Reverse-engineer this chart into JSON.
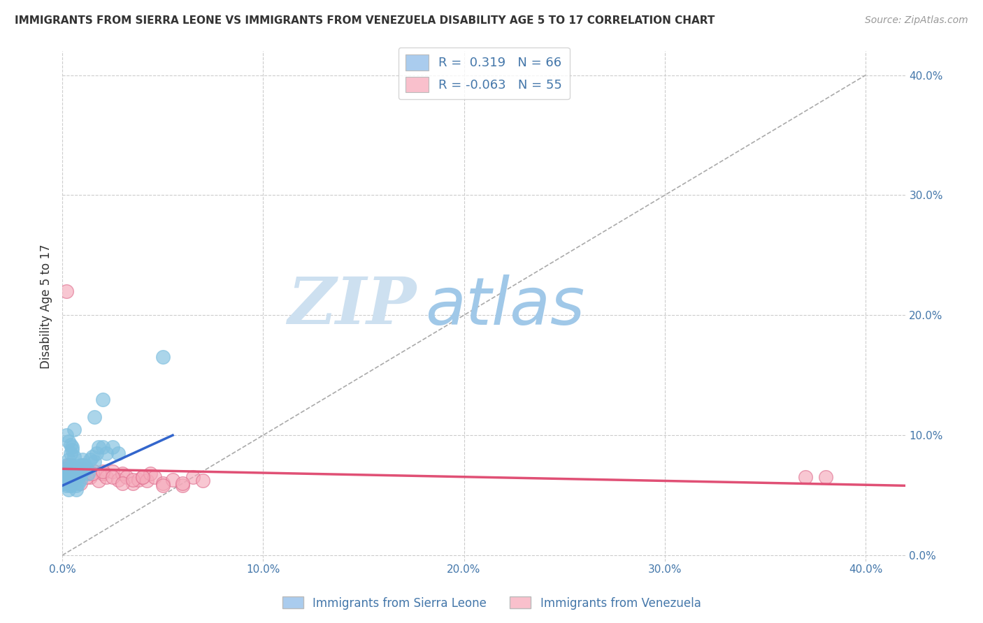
{
  "title": "IMMIGRANTS FROM SIERRA LEONE VS IMMIGRANTS FROM VENEZUELA DISABILITY AGE 5 TO 17 CORRELATION CHART",
  "source": "Source: ZipAtlas.com",
  "ylabel": "Disability Age 5 to 17",
  "legend_label1": "Immigrants from Sierra Leone",
  "legend_label2": "Immigrants from Venezuela",
  "R1": 0.319,
  "N1": 66,
  "R2": -0.063,
  "N2": 55,
  "color_blue": "#7fbfdf",
  "color_blue_edge": "#7fbfdf",
  "color_blue_line": "#3366cc",
  "color_pink": "#f5aabb",
  "color_pink_edge": "#e07090",
  "color_pink_line": "#e05075",
  "color_legend_blue_box": "#aaccee",
  "color_legend_pink_box": "#f9c0cc",
  "xlim": [
    0.0,
    0.42
  ],
  "ylim": [
    -0.005,
    0.42
  ],
  "xticks": [
    0.0,
    0.1,
    0.2,
    0.3,
    0.4
  ],
  "yticks_right": [
    0.0,
    0.1,
    0.2,
    0.3,
    0.4
  ],
  "grid_color": "#cccccc",
  "background_color": "#ffffff",
  "blue_x": [
    0.001,
    0.001,
    0.001,
    0.001,
    0.002,
    0.002,
    0.002,
    0.002,
    0.003,
    0.003,
    0.003,
    0.003,
    0.004,
    0.004,
    0.004,
    0.004,
    0.005,
    0.005,
    0.005,
    0.005,
    0.006,
    0.006,
    0.006,
    0.007,
    0.007,
    0.007,
    0.008,
    0.008,
    0.009,
    0.009,
    0.01,
    0.01,
    0.011,
    0.012,
    0.013,
    0.014,
    0.015,
    0.016,
    0.017,
    0.018,
    0.02,
    0.022,
    0.025,
    0.028,
    0.001,
    0.002,
    0.003,
    0.004,
    0.005,
    0.006,
    0.007,
    0.008,
    0.009,
    0.01,
    0.002,
    0.003,
    0.004,
    0.005,
    0.006,
    0.003,
    0.004,
    0.005,
    0.006,
    0.016,
    0.05,
    0.02
  ],
  "blue_y": [
    0.065,
    0.068,
    0.072,
    0.06,
    0.075,
    0.07,
    0.065,
    0.062,
    0.068,
    0.065,
    0.07,
    0.055,
    0.068,
    0.072,
    0.063,
    0.058,
    0.07,
    0.068,
    0.075,
    0.062,
    0.065,
    0.072,
    0.06,
    0.07,
    0.065,
    0.058,
    0.072,
    0.065,
    0.068,
    0.075,
    0.08,
    0.07,
    0.075,
    0.072,
    0.068,
    0.08,
    0.082,
    0.078,
    0.085,
    0.09,
    0.09,
    0.085,
    0.09,
    0.085,
    0.06,
    0.058,
    0.062,
    0.058,
    0.065,
    0.062,
    0.055,
    0.06,
    0.063,
    0.075,
    0.1,
    0.095,
    0.092,
    0.088,
    0.105,
    0.08,
    0.085,
    0.09,
    0.082,
    0.115,
    0.165,
    0.13
  ],
  "pink_x": [
    0.001,
    0.001,
    0.002,
    0.002,
    0.003,
    0.003,
    0.004,
    0.004,
    0.005,
    0.005,
    0.006,
    0.007,
    0.008,
    0.009,
    0.01,
    0.012,
    0.014,
    0.016,
    0.018,
    0.02,
    0.022,
    0.025,
    0.028,
    0.03,
    0.032,
    0.035,
    0.038,
    0.04,
    0.042,
    0.044,
    0.046,
    0.05,
    0.055,
    0.06,
    0.065,
    0.07,
    0.002,
    0.003,
    0.004,
    0.005,
    0.006,
    0.008,
    0.01,
    0.012,
    0.015,
    0.02,
    0.025,
    0.03,
    0.035,
    0.04,
    0.05,
    0.06,
    0.37,
    0.38,
    0.002
  ],
  "pink_y": [
    0.062,
    0.07,
    0.065,
    0.072,
    0.068,
    0.075,
    0.06,
    0.065,
    0.07,
    0.063,
    0.068,
    0.065,
    0.072,
    0.06,
    0.075,
    0.068,
    0.065,
    0.07,
    0.062,
    0.068,
    0.065,
    0.07,
    0.063,
    0.068,
    0.065,
    0.06,
    0.063,
    0.065,
    0.062,
    0.068,
    0.065,
    0.06,
    0.063,
    0.058,
    0.065,
    0.062,
    0.072,
    0.068,
    0.075,
    0.07,
    0.065,
    0.068,
    0.072,
    0.065,
    0.068,
    0.07,
    0.065,
    0.06,
    0.063,
    0.065,
    0.058,
    0.06,
    0.065,
    0.065,
    0.22
  ],
  "blue_trendline_x": [
    0.0,
    0.055
  ],
  "blue_trendline_y": [
    0.058,
    0.1
  ],
  "pink_trendline_x": [
    0.0,
    0.42
  ],
  "pink_trendline_y": [
    0.072,
    0.058
  ],
  "diag_line_x": [
    0.0,
    0.4
  ],
  "diag_line_y": [
    0.0,
    0.4
  ],
  "watermark_zip": "ZIP",
  "watermark_atlas": "atlas",
  "watermark_color_zip": "#cde0f0",
  "watermark_color_atlas": "#a0c8e8"
}
